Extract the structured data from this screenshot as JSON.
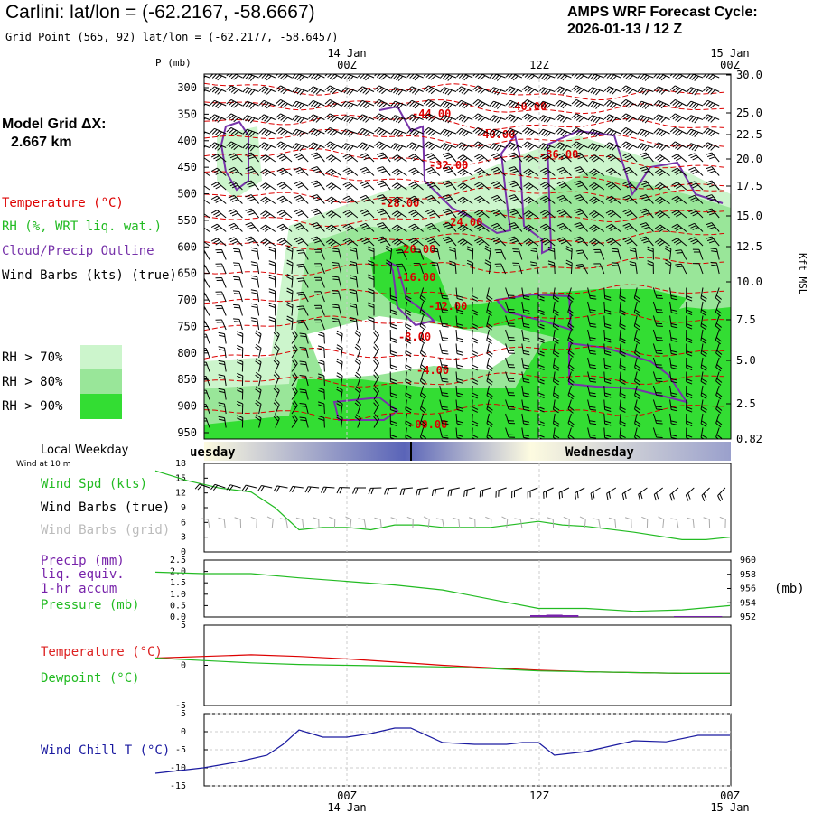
{
  "header": {
    "title": "Carlini:  lat/lon = (-62.2167, -58.6667)",
    "subtitle": "Grid Point (565, 92) lat/lon = (-62.2177, -58.6457)",
    "cycle_line1": "AMPS WRF Forecast Cycle:",
    "cycle_line2": "2026-01-13 / 12  Z"
  },
  "model_grid": {
    "label": "Model Grid ΔX:",
    "value": "2.667 km"
  },
  "legend": {
    "temperature": "Temperature (°C)",
    "rh": "RH (%, WRT liq. wat.)",
    "cloud": "Cloud/Precip Outline",
    "wind": "Wind Barbs (kts) (true)",
    "rh70": "RH > 70%",
    "rh80": "RH > 80%",
    "rh90": "RH > 90%",
    "rh70_color": "#ccf5cc",
    "rh80_color": "#99e699",
    "rh90_color": "#33dd33"
  },
  "time_axis": {
    "top_labels": [
      {
        "day": "14 Jan",
        "hour": "00Z"
      },
      {
        "day": "",
        "hour": "12Z"
      },
      {
        "day": "15 Jan",
        "hour": "00Z"
      }
    ],
    "bottom_labels": [
      {
        "hour": "00Z",
        "day": "14 Jan"
      },
      {
        "hour": "12Z",
        "day": ""
      },
      {
        "hour": "00Z",
        "day": "15 Jan"
      }
    ]
  },
  "weekday": {
    "label": "Local Weekday",
    "left": "uesday",
    "right": "Wednesday"
  },
  "colors": {
    "temperature": "#dd0000",
    "dewpoint": "#22bb22",
    "wind_speed": "#22bb22",
    "pressure": "#22bb22",
    "precip": "#7722aa",
    "cloud": "#7733aa",
    "wind_chill": "#1a1aa0",
    "barb": "#000000",
    "grid_barb": "#aaaaaa"
  },
  "chart_data": [
    {
      "type": "heatmap",
      "name": "vertical cross-section",
      "ylabel_left": "P (mb)",
      "ylabel_right": "Kft MSL",
      "pressure_ticks": [
        "300",
        "350",
        "400",
        "450",
        "500",
        "550",
        "600",
        "650",
        "700",
        "750",
        "800",
        "850",
        "900",
        "950"
      ],
      "height_ticks": [
        "30.0",
        "25.0",
        "22.5",
        "20.0",
        "17.5",
        "15.0",
        "12.5",
        "10.0",
        "7.5",
        "5.0",
        "2.5",
        "0.82"
      ],
      "temperature_contour_labels": [
        "-44.00",
        "-40.00",
        "-40.00",
        "-36.00",
        "-32.00",
        "-28.00",
        "-24.00",
        "-20.00",
        "-16.00",
        "-12.00",
        "-8.00",
        "-4.00",
        "-00.00"
      ]
    },
    {
      "type": "line",
      "name": "surface wind",
      "label_top": "Wind at 10 m",
      "series_label": "Wind Spd (kts)",
      "barb_label": "Wind Barbs (true)",
      "grid_barb_label": "Wind Barbs (grid)",
      "yticks": [
        "18",
        "15",
        "12",
        "9",
        "6",
        "3",
        "0"
      ],
      "ylim": [
        0,
        18
      ],
      "x_hours": [
        -12,
        -10,
        -8,
        -6,
        -4.5,
        -3,
        -1.5,
        0,
        1.5,
        3,
        4.5,
        6,
        9,
        12,
        13.5,
        15,
        18,
        21,
        22.5,
        24
      ],
      "values": [
        16.5,
        14.5,
        13,
        12.2,
        9,
        4.5,
        5,
        5,
        4.5,
        5.5,
        5.5,
        5,
        5,
        6.2,
        5.5,
        5.2,
        4,
        2.5,
        2.5,
        3
      ]
    },
    {
      "type": "line",
      "name": "precip and pressure",
      "precip_label_1": "Precip (mm)",
      "precip_label_2": "liq. equiv.",
      "precip_label_3": "1-hr accum",
      "pressure_label": "Pressure (mb)",
      "yunit_right": "(mb)",
      "yticks_left": [
        "2.5",
        "2.0",
        "1.5",
        "1.0",
        "0.5",
        "0.0"
      ],
      "yticks_right": [
        "960",
        "958",
        "956",
        "954",
        "952"
      ],
      "precip_ylim": [
        0,
        2.5
      ],
      "pressure_ylim": [
        952,
        960
      ],
      "x_hours": [
        -12,
        -9,
        -6,
        -3,
        0,
        3,
        6,
        9,
        12,
        15,
        18,
        21,
        24
      ],
      "pressure": [
        958.3,
        958.1,
        958.1,
        957.5,
        957.0,
        956.5,
        955.8,
        954.5,
        953.2,
        953.2,
        952.8,
        953.0,
        953.6
      ],
      "precip_x_hours": [
        12,
        13,
        14,
        21,
        22,
        23
      ],
      "precip": [
        0.08,
        0.1,
        0.08,
        0.04,
        0.04,
        0.04
      ]
    },
    {
      "type": "line",
      "name": "temperature and dewpoint",
      "temp_label": "Temperature (°C)",
      "dew_label": "Dewpoint (°C)",
      "yticks": [
        "5",
        "0",
        "-5"
      ],
      "ylim": [
        -5,
        5
      ],
      "x_hours": [
        -12,
        -9,
        -6,
        -3,
        0,
        3,
        6,
        9,
        12,
        15,
        18,
        21,
        24
      ],
      "temperature": [
        0.9,
        1.1,
        1.3,
        1.1,
        0.8,
        0.4,
        0.0,
        -0.3,
        -0.6,
        -0.8,
        -0.9,
        -1.0,
        -1.0
      ],
      "dewpoint": [
        0.9,
        0.6,
        0.3,
        0.1,
        0.0,
        -0.1,
        -0.2,
        -0.4,
        -0.7,
        -0.8,
        -0.9,
        -1.0,
        -1.0
      ]
    },
    {
      "type": "line",
      "name": "wind chill",
      "label": "Wind Chill T (°C)",
      "yticks": [
        "5",
        "0",
        "-5",
        "-10",
        "-15"
      ],
      "ylim": [
        -15,
        5
      ],
      "x_hours": [
        -12,
        -10,
        -9,
        -7,
        -5,
        -4,
        -3,
        -1.5,
        0,
        1.5,
        3,
        4,
        6,
        8,
        10,
        11,
        12,
        13,
        15,
        18,
        20,
        22,
        24
      ],
      "values": [
        -11.5,
        -10.5,
        -10.0,
        -8.5,
        -6.5,
        -3.5,
        0.5,
        -1.5,
        -1.5,
        -0.5,
        1.0,
        1.0,
        -3.0,
        -3.5,
        -3.5,
        -3.0,
        -3.0,
        -6.5,
        -5.5,
        -2.5,
        -2.8,
        -1.0,
        -1.0
      ]
    }
  ]
}
